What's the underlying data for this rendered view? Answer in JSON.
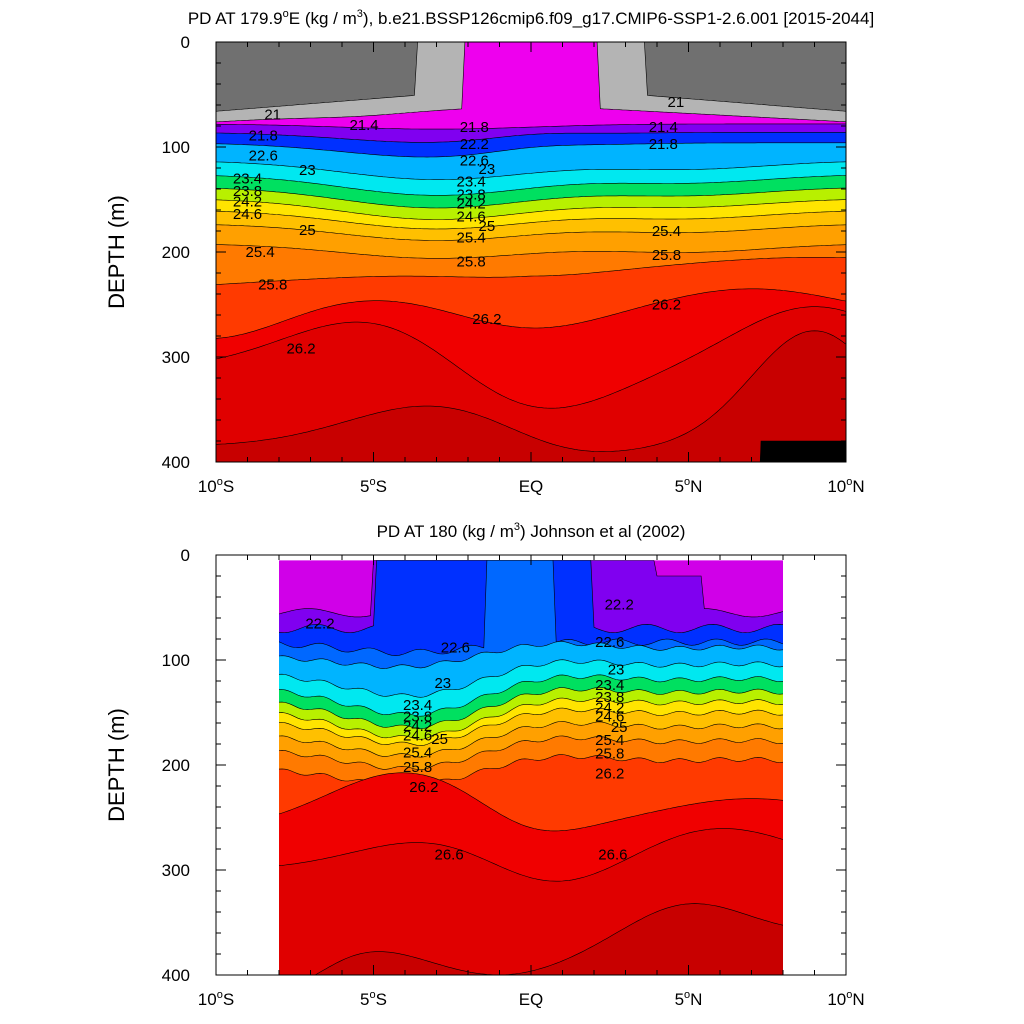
{
  "chart_data": [
    {
      "type": "contour",
      "title": "PD AT 179.9°E (kg / m³), b.e21.BSSP126cmip6.f09_g17.CMIP6-SSP1-2.6.001 [2015-2044]",
      "title_parts": [
        "PD AT 179.9",
        "o",
        "E (kg / m",
        "3",
        "), b.e21.BSSP126cmip6.f09_g17.CMIP6-SSP1-2.6.001 [2015-2044]"
      ],
      "xlabel": "",
      "ylabel": "DEPTH (m)",
      "xlim": [
        -10,
        10
      ],
      "ylim": [
        400,
        0
      ],
      "y_ticks": [
        0,
        100,
        200,
        300,
        400
      ],
      "x_ticks": [
        {
          "value": -10,
          "num": "10",
          "hemi": "S"
        },
        {
          "value": -5,
          "num": "5",
          "hemi": "S"
        },
        {
          "value": 0,
          "num": "EQ",
          "hemi": ""
        },
        {
          "value": 5,
          "num": "5",
          "hemi": "N"
        },
        {
          "value": 10,
          "num": "10",
          "hemi": "N"
        }
      ],
      "data_lat_range": [
        -10,
        10
      ],
      "contour_levels": [
        21.0,
        21.4,
        21.8,
        22.2,
        22.6,
        23.0,
        23.4,
        23.8,
        24.2,
        24.6,
        25.0,
        25.4,
        25.8,
        26.2,
        26.6
      ],
      "colors": {
        "lt21": "#707070",
        "b21_214": "#b4b4b4",
        "b214_22": "#ee00ee",
        "b22_226": "#8000f0",
        "b226_23": "#0030ff",
        "b23_234": "#00b4ff",
        "b234_238": "#00e8f0",
        "b238_242": "#00e060",
        "b242_246": "#b8f000",
        "b246_25": "#ffe400",
        "b25_254": "#ffc000",
        "b254_258": "#ffa000",
        "b258_262": "#ff7a00",
        "b262_266": "#ff3a00",
        "b266_27": "#f00000",
        "b27_274": "#e00000",
        "gt274": "#c80000"
      },
      "annotations": [
        {
          "text": "21",
          "lat": -8.2,
          "depth": 69
        },
        {
          "text": "21.4",
          "lat": -5.3,
          "depth": 79
        },
        {
          "text": "21",
          "lat": 4.6,
          "depth": 57
        },
        {
          "text": "21.8",
          "lat": -8.5,
          "depth": 89
        },
        {
          "text": "21.8",
          "lat": -1.8,
          "depth": 81
        },
        {
          "text": "21.4",
          "lat": 4.2,
          "depth": 81
        },
        {
          "text": "21.8",
          "lat": 4.2,
          "depth": 97
        },
        {
          "text": "22.2",
          "lat": -1.8,
          "depth": 97
        },
        {
          "text": "22.6",
          "lat": -8.5,
          "depth": 108
        },
        {
          "text": "22.6",
          "lat": -1.8,
          "depth": 113
        },
        {
          "text": "23",
          "lat": -7.1,
          "depth": 122
        },
        {
          "text": "23",
          "lat": -1.4,
          "depth": 121
        },
        {
          "text": "23.4",
          "lat": -9.0,
          "depth": 130
        },
        {
          "text": "23.4",
          "lat": -1.9,
          "depth": 133
        },
        {
          "text": "23.8",
          "lat": -9.0,
          "depth": 142
        },
        {
          "text": "23.8",
          "lat": -1.9,
          "depth": 145
        },
        {
          "text": "24.2",
          "lat": -9.0,
          "depth": 152
        },
        {
          "text": "24.2",
          "lat": -1.9,
          "depth": 154
        },
        {
          "text": "24.6",
          "lat": -9.0,
          "depth": 164
        },
        {
          "text": "24.6",
          "lat": -1.9,
          "depth": 166
        },
        {
          "text": "25",
          "lat": -7.1,
          "depth": 179
        },
        {
          "text": "25",
          "lat": -1.4,
          "depth": 175
        },
        {
          "text": "25.4",
          "lat": -8.6,
          "depth": 200
        },
        {
          "text": "25.4",
          "lat": -1.9,
          "depth": 186
        },
        {
          "text": "25.8",
          "lat": -8.2,
          "depth": 231
        },
        {
          "text": "25.8",
          "lat": -1.9,
          "depth": 209
        },
        {
          "text": "26.2",
          "lat": -7.3,
          "depth": 292
        },
        {
          "text": "26.2",
          "lat": -1.4,
          "depth": 264
        },
        {
          "text": "25.8",
          "lat": 4.3,
          "depth": 203
        },
        {
          "text": "25.4",
          "lat": 4.3,
          "depth": 180
        },
        {
          "text": "26.2",
          "lat": 4.3,
          "depth": 250
        }
      ]
    },
    {
      "type": "contour",
      "title": "PD AT 180 (kg / m³) Johnson et al (2002)",
      "title_parts": [
        "PD AT 180 (kg / m",
        "3",
        ") Johnson et al (2002)"
      ],
      "xlabel": "",
      "ylabel": "DEPTH (m)",
      "xlim": [
        -10,
        10
      ],
      "ylim": [
        400,
        0
      ],
      "y_ticks": [
        0,
        100,
        200,
        300,
        400
      ],
      "x_ticks": [
        {
          "value": -10,
          "num": "10",
          "hemi": "S"
        },
        {
          "value": -5,
          "num": "5",
          "hemi": "S"
        },
        {
          "value": 0,
          "num": "EQ",
          "hemi": ""
        },
        {
          "value": 5,
          "num": "5",
          "hemi": "N"
        },
        {
          "value": 10,
          "num": "10",
          "hemi": "N"
        }
      ],
      "data_lat_range": [
        -8,
        8
      ],
      "data_depth_range": [
        5,
        400
      ],
      "contour_levels": [
        22.2,
        22.6,
        23.0,
        23.4,
        23.8,
        24.2,
        24.6,
        25.0,
        25.4,
        25.8,
        26.2,
        26.6
      ],
      "colors": {
        "lt22": "#d000e8",
        "b22_222": "#8000f0",
        "b222_226": "#0030ff",
        "b226_23": "#0068ff",
        "b23_234": "#00b4ff",
        "b234_238": "#00e8f0",
        "b238_242": "#00e060",
        "b242_246": "#b8f000",
        "b246_25": "#ffe400",
        "b25_254": "#ffc000",
        "b254_258": "#ffa000",
        "b258_262": "#ff7a00",
        "b262_266": "#ff3a00",
        "b266_27": "#f00000",
        "b27_274": "#e00000",
        "gt274": "#c80000"
      },
      "annotations": [
        {
          "text": "22.2",
          "lat": -6.7,
          "depth": 65
        },
        {
          "text": "22.6",
          "lat": -2.4,
          "depth": 88
        },
        {
          "text": "22.2",
          "lat": 2.8,
          "depth": 47
        },
        {
          "text": "22.6",
          "lat": 2.5,
          "depth": 83
        },
        {
          "text": "23",
          "lat": -2.8,
          "depth": 122
        },
        {
          "text": "23",
          "lat": 2.7,
          "depth": 109
        },
        {
          "text": "23.4",
          "lat": -3.6,
          "depth": 143
        },
        {
          "text": "23.8",
          "lat": -3.6,
          "depth": 154
        },
        {
          "text": "24.2",
          "lat": -3.6,
          "depth": 163
        },
        {
          "text": "24.6",
          "lat": -3.6,
          "depth": 172
        },
        {
          "text": "25",
          "lat": -2.9,
          "depth": 175
        },
        {
          "text": "25.4",
          "lat": -3.6,
          "depth": 188
        },
        {
          "text": "25.8",
          "lat": -3.6,
          "depth": 202
        },
        {
          "text": "26.2",
          "lat": -3.4,
          "depth": 221
        },
        {
          "text": "23.4",
          "lat": 2.5,
          "depth": 124
        },
        {
          "text": "23.8",
          "lat": 2.5,
          "depth": 135
        },
        {
          "text": "24.2",
          "lat": 2.5,
          "depth": 145
        },
        {
          "text": "24.6",
          "lat": 2.5,
          "depth": 154
        },
        {
          "text": "25",
          "lat": 2.8,
          "depth": 164
        },
        {
          "text": "25.4",
          "lat": 2.5,
          "depth": 176
        },
        {
          "text": "25.8",
          "lat": 2.5,
          "depth": 189
        },
        {
          "text": "26.2",
          "lat": 2.5,
          "depth": 208
        },
        {
          "text": "26.6",
          "lat": -2.6,
          "depth": 285
        },
        {
          "text": "26.6",
          "lat": 2.6,
          "depth": 285
        }
      ]
    }
  ]
}
